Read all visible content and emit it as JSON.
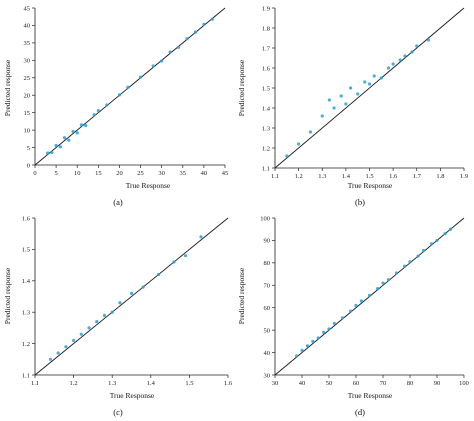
{
  "colors": {
    "point": "#2a9fd8",
    "line": "#1a1a1a",
    "axis": "#222222"
  },
  "chart_data": [
    {
      "type": "scatter",
      "panel_label": "(a)",
      "xlabel": "True Response",
      "ylabel": "Predicted response",
      "xlim": [
        0,
        45
      ],
      "ylim": [
        0,
        45
      ],
      "xticks": [
        0,
        5,
        10,
        15,
        20,
        25,
        30,
        35,
        40,
        45
      ],
      "yticks": [
        0,
        5,
        10,
        15,
        20,
        25,
        30,
        35,
        40,
        45
      ],
      "reference_line": "y = x",
      "points": [
        [
          3,
          3.4
        ],
        [
          4,
          3.6
        ],
        [
          5,
          5.6
        ],
        [
          6,
          5.2
        ],
        [
          7,
          7.8
        ],
        [
          8,
          7.1
        ],
        [
          9,
          9.6
        ],
        [
          10,
          9.2
        ],
        [
          11,
          11.5
        ],
        [
          12,
          11.3
        ],
        [
          14,
          14.4
        ],
        [
          15,
          15.6
        ],
        [
          17,
          17.2
        ],
        [
          20,
          20.1
        ],
        [
          22,
          22.3
        ],
        [
          25,
          25.2
        ],
        [
          28,
          28.4
        ],
        [
          30,
          29.8
        ],
        [
          32,
          32.4
        ],
        [
          34,
          33.7
        ],
        [
          36,
          36.2
        ],
        [
          38,
          38.1
        ],
        [
          40,
          40.3
        ],
        [
          42,
          41.8
        ]
      ]
    },
    {
      "type": "scatter",
      "panel_label": "(b)",
      "xlabel": "True Response",
      "ylabel": "Predicted response",
      "xlim": [
        1.1,
        1.9
      ],
      "ylim": [
        1.1,
        1.9
      ],
      "xticks": [
        1.1,
        1.2,
        1.3,
        1.4,
        1.5,
        1.6,
        1.7,
        1.8,
        1.9
      ],
      "yticks": [
        1.1,
        1.2,
        1.3,
        1.4,
        1.5,
        1.6,
        1.7,
        1.8,
        1.9
      ],
      "reference_line": "y = x",
      "points": [
        [
          1.15,
          1.16
        ],
        [
          1.2,
          1.22
        ],
        [
          1.25,
          1.28
        ],
        [
          1.3,
          1.36
        ],
        [
          1.33,
          1.44
        ],
        [
          1.35,
          1.4
        ],
        [
          1.38,
          1.46
        ],
        [
          1.4,
          1.42
        ],
        [
          1.42,
          1.5
        ],
        [
          1.45,
          1.47
        ],
        [
          1.48,
          1.53
        ],
        [
          1.5,
          1.52
        ],
        [
          1.52,
          1.56
        ],
        [
          1.55,
          1.55
        ],
        [
          1.58,
          1.6
        ],
        [
          1.6,
          1.62
        ],
        [
          1.63,
          1.64
        ],
        [
          1.65,
          1.66
        ],
        [
          1.68,
          1.68
        ],
        [
          1.7,
          1.71
        ],
        [
          1.75,
          1.74
        ]
      ]
    },
    {
      "type": "scatter",
      "panel_label": "(c)",
      "xlabel": "True Response",
      "ylabel": "Predicted response",
      "xlim": [
        1.1,
        1.6
      ],
      "ylim": [
        1.1,
        1.6
      ],
      "xticks": [
        1.1,
        1.2,
        1.3,
        1.4,
        1.5,
        1.6
      ],
      "yticks": [
        1.1,
        1.2,
        1.3,
        1.4,
        1.5,
        1.6
      ],
      "reference_line": "y = x",
      "points": [
        [
          1.14,
          1.15
        ],
        [
          1.16,
          1.17
        ],
        [
          1.18,
          1.19
        ],
        [
          1.2,
          1.21
        ],
        [
          1.22,
          1.23
        ],
        [
          1.24,
          1.25
        ],
        [
          1.26,
          1.27
        ],
        [
          1.28,
          1.29
        ],
        [
          1.3,
          1.3
        ],
        [
          1.32,
          1.33
        ],
        [
          1.35,
          1.36
        ],
        [
          1.38,
          1.38
        ],
        [
          1.42,
          1.42
        ],
        [
          1.46,
          1.46
        ],
        [
          1.49,
          1.48
        ],
        [
          1.53,
          1.54
        ]
      ]
    },
    {
      "type": "scatter",
      "panel_label": "(d)",
      "xlabel": "True Response",
      "ylabel": "Predicted response",
      "xlim": [
        30,
        100
      ],
      "ylim": [
        30,
        100
      ],
      "xticks": [
        30,
        40,
        50,
        60,
        70,
        80,
        90,
        100
      ],
      "yticks": [
        30,
        40,
        50,
        60,
        70,
        80,
        90,
        100
      ],
      "reference_line": "y = x",
      "points": [
        [
          38,
          38.5
        ],
        [
          40,
          41
        ],
        [
          42,
          43
        ],
        [
          44,
          45
        ],
        [
          46,
          46.5
        ],
        [
          48,
          49
        ],
        [
          50,
          50.5
        ],
        [
          52,
          53
        ],
        [
          55,
          55.5
        ],
        [
          58,
          58.5
        ],
        [
          60,
          61
        ],
        [
          62,
          63
        ],
        [
          65,
          65.5
        ],
        [
          68,
          68.5
        ],
        [
          70,
          71
        ],
        [
          72,
          72.5
        ],
        [
          75,
          75.5
        ],
        [
          78,
          78.5
        ],
        [
          80,
          80.5
        ],
        [
          83,
          83
        ],
        [
          85,
          85.5
        ],
        [
          88,
          88.5
        ],
        [
          90,
          90
        ],
        [
          93,
          93
        ],
        [
          95,
          95
        ]
      ]
    }
  ]
}
